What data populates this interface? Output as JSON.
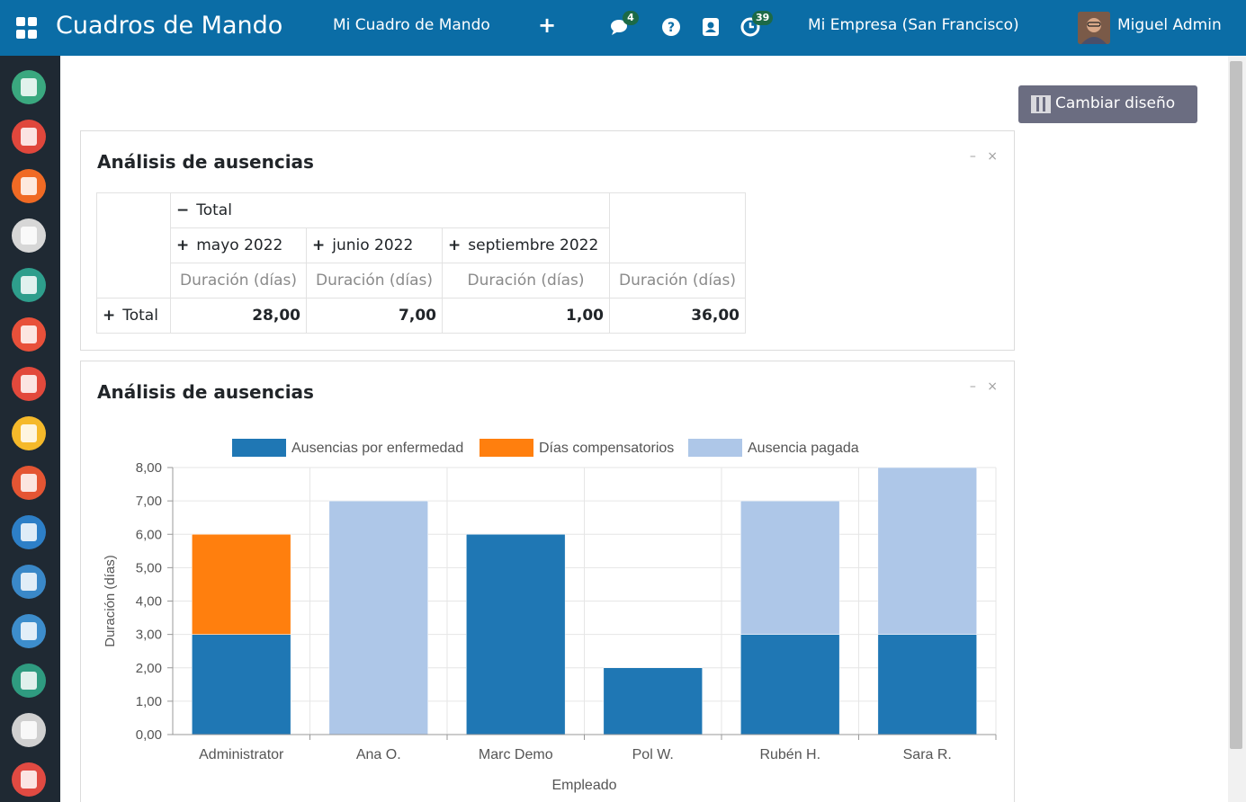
{
  "navbar": {
    "title": "Cuadros de Mando",
    "menu_item": "Mi Cuadro de Mando",
    "plus": "+",
    "messages_count": "4",
    "activities_count": "39",
    "company": "Mi Empresa (San Francisco)",
    "user": "Miguel Admin"
  },
  "sidebar": {
    "apps": [
      {
        "name": "conversaciones",
        "color": "#3aa87f"
      },
      {
        "name": "calendario",
        "color": "#e0473c"
      },
      {
        "name": "contactos",
        "color": "#f06a24"
      },
      {
        "name": "empleados",
        "color": "#d7d7d7"
      },
      {
        "name": "reclutamiento",
        "color": "#2e9e8c"
      },
      {
        "name": "crm",
        "color": "#e8503a"
      },
      {
        "name": "ventas",
        "color": "#e2493c"
      },
      {
        "name": "sitio-web",
        "color": "#f5b92a"
      },
      {
        "name": "gastos",
        "color": "#e45533"
      },
      {
        "name": "punto-de-venta",
        "color": "#2d7fc7"
      },
      {
        "name": "contabilidad",
        "color": "#3a88c8"
      },
      {
        "name": "planificacion",
        "color": "#3d8dcc"
      },
      {
        "name": "ausencias",
        "color": "#2f9b80"
      },
      {
        "name": "tienda",
        "color": "#d0d0d0"
      },
      {
        "name": "eventos",
        "color": "#e04a42"
      }
    ]
  },
  "toolbar": {
    "layout_button": "Cambiar diseño"
  },
  "pivot_panel": {
    "title": "Análisis de ausencias",
    "minimize": "–",
    "close": "×",
    "header_total": "Total",
    "header_minus": "−",
    "plus": "+",
    "months": [
      "mayo 2022",
      "junio 2022",
      "septiembre 2022"
    ],
    "measure": "Duración (días)",
    "row_label": "Total",
    "values": [
      "28,00",
      "7,00",
      "1,00",
      "36,00"
    ]
  },
  "chart_panel": {
    "title": "Análisis de ausencias",
    "minimize": "–",
    "close": "×"
  },
  "chart_data": {
    "type": "bar",
    "stacked": true,
    "categories": [
      "Administrator",
      "Ana O.",
      "Marc Demo",
      "Pol W.",
      "Rubén H.",
      "Sara R."
    ],
    "series": [
      {
        "name": "Ausencias por enfermedad",
        "color": "#1f77b4",
        "values": [
          3,
          0,
          6,
          2,
          3,
          3
        ]
      },
      {
        "name": "Días compensatorios",
        "color": "#ff7f0e",
        "values": [
          3,
          0,
          0,
          0,
          0,
          0
        ]
      },
      {
        "name": "Ausencia pagada",
        "color": "#aec7e8",
        "values": [
          0,
          7,
          0,
          0,
          4,
          5
        ]
      }
    ],
    "yticks": [
      "0,00",
      "1,00",
      "2,00",
      "3,00",
      "4,00",
      "5,00",
      "6,00",
      "7,00",
      "8,00"
    ],
    "ylim": [
      0,
      8
    ],
    "xlabel": "Empleado",
    "ylabel": "Duración (días)",
    "legend": "top",
    "grid": true
  }
}
